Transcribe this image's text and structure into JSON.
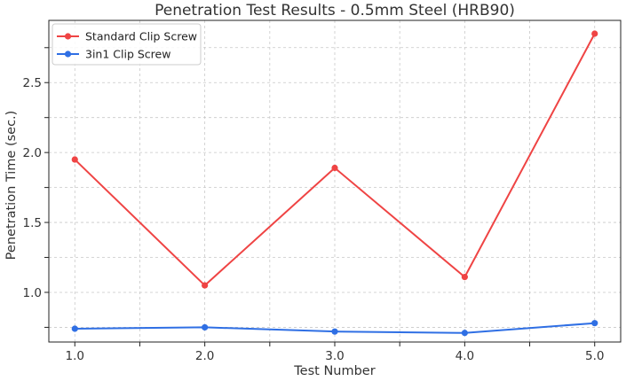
{
  "chart_data": {
    "type": "line",
    "title": "Penetration Test Results - 0.5mm Steel (HRB90)",
    "xlabel": "Test Number",
    "ylabel": "Penetration Time (sec.)",
    "x": [
      1,
      2,
      3,
      4,
      5
    ],
    "xticks": [
      "1.0",
      "2.0",
      "3.0",
      "4.0",
      "5.0"
    ],
    "xlim": [
      0.8,
      5.2
    ],
    "yticks": [
      "1.0",
      "1.5",
      "2.0",
      "2.5"
    ],
    "ylim": [
      0.645,
      2.945
    ],
    "grid": true,
    "legend_position": "top-left",
    "series": [
      {
        "name": "Standard Clip Screw",
        "color": "#ef4444",
        "values": [
          1.95,
          1.05,
          1.89,
          1.11,
          2.85
        ]
      },
      {
        "name": "3in1 Clip Screw",
        "color": "#2f6fe4",
        "values": [
          0.74,
          0.75,
          0.72,
          0.71,
          0.78
        ]
      }
    ]
  }
}
